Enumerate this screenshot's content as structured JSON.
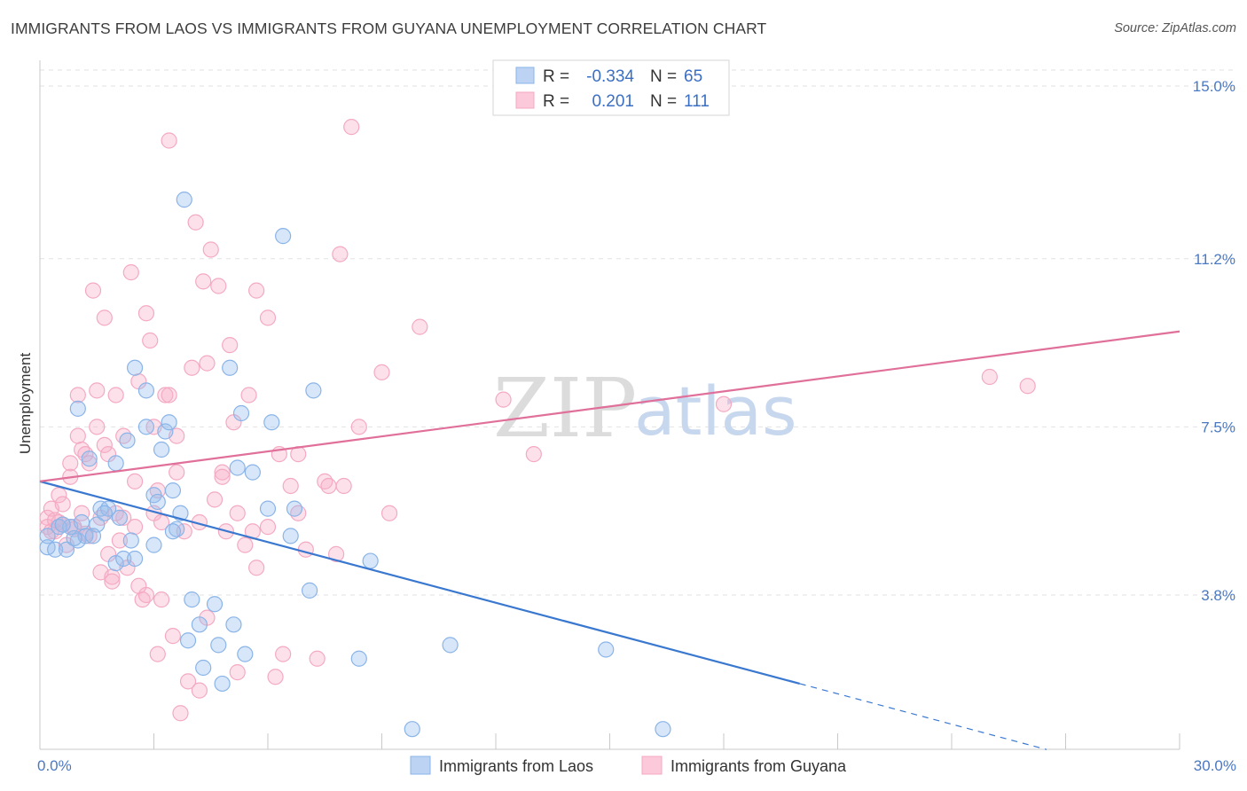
{
  "title": "IMMIGRANTS FROM LAOS VS IMMIGRANTS FROM GUYANA UNEMPLOYMENT CORRELATION CHART",
  "source": "Source: ZipAtlas.com",
  "watermark": {
    "zip": "ZIP",
    "atlas": "atlas"
  },
  "chart_data": {
    "type": "scatter",
    "title": "IMMIGRANTS FROM LAOS VS IMMIGRANTS FROM GUYANA UNEMPLOYMENT CORRELATION CHART",
    "xlabel": "",
    "ylabel": "Unemployment",
    "xlim": [
      0,
      30
    ],
    "ylim": [
      0.5,
      15.5
    ],
    "x_tick_labels": [
      {
        "value": 0,
        "label": "0.0%"
      },
      {
        "value": 30,
        "label": "30.0%"
      }
    ],
    "y_ticks": [
      {
        "value": 3.8,
        "label": "3.8%"
      },
      {
        "value": 7.5,
        "label": "7.5%"
      },
      {
        "value": 11.2,
        "label": "11.2%"
      },
      {
        "value": 15.0,
        "label": "15.0%"
      }
    ],
    "legend_stats": [
      {
        "r_label": "R =",
        "r_value": "-0.334",
        "n_label": "N =",
        "n_value": "65"
      },
      {
        "r_label": "R =",
        "r_value": "0.201",
        "n_label": "N =",
        "n_value": "111"
      }
    ],
    "series": [
      {
        "name": "Immigrants from Laos",
        "color": "#8ab4e8",
        "line_color": "#3a78d0",
        "trend": {
          "x0": 0,
          "y0": 6.3,
          "x1": 20.0,
          "y1": 1.85,
          "dash_to_x": 26.5,
          "dash_to_y": 0.4
        },
        "points": [
          [
            0.2,
            5.1
          ],
          [
            0.2,
            4.85
          ],
          [
            0.4,
            4.8
          ],
          [
            0.5,
            5.3
          ],
          [
            0.7,
            4.8
          ],
          [
            0.8,
            5.3
          ],
          [
            1.0,
            5.0
          ],
          [
            1.0,
            7.9
          ],
          [
            1.2,
            5.1
          ],
          [
            1.3,
            6.8
          ],
          [
            1.5,
            5.35
          ],
          [
            1.6,
            5.7
          ],
          [
            1.8,
            5.7
          ],
          [
            2.0,
            4.5
          ],
          [
            2.0,
            6.7
          ],
          [
            2.2,
            4.6
          ],
          [
            2.3,
            7.2
          ],
          [
            2.5,
            8.8
          ],
          [
            2.5,
            4.6
          ],
          [
            2.8,
            8.3
          ],
          [
            2.8,
            7.5
          ],
          [
            3.0,
            4.9
          ],
          [
            3.0,
            6.0
          ],
          [
            3.1,
            5.85
          ],
          [
            3.2,
            7.0
          ],
          [
            3.3,
            7.4
          ],
          [
            3.4,
            7.6
          ],
          [
            3.5,
            6.1
          ],
          [
            3.6,
            5.25
          ],
          [
            3.7,
            5.6
          ],
          [
            3.8,
            12.5
          ],
          [
            3.9,
            2.8
          ],
          [
            4.0,
            3.7
          ],
          [
            4.2,
            3.15
          ],
          [
            4.3,
            2.2
          ],
          [
            4.6,
            3.6
          ],
          [
            4.7,
            2.7
          ],
          [
            4.8,
            1.85
          ],
          [
            5.0,
            8.8
          ],
          [
            5.1,
            3.15
          ],
          [
            5.2,
            6.6
          ],
          [
            5.3,
            7.8
          ],
          [
            5.4,
            2.5
          ],
          [
            5.6,
            6.5
          ],
          [
            6.0,
            5.7
          ],
          [
            6.1,
            7.6
          ],
          [
            6.4,
            11.7
          ],
          [
            6.6,
            5.1
          ],
          [
            6.7,
            5.7
          ],
          [
            7.1,
            3.9
          ],
          [
            7.2,
            8.3
          ],
          [
            8.4,
            2.4
          ],
          [
            8.7,
            4.55
          ],
          [
            9.8,
            0.85
          ],
          [
            10.8,
            2.7
          ],
          [
            14.9,
            2.6
          ],
          [
            16.4,
            0.85
          ],
          [
            0.6,
            5.35
          ],
          [
            0.9,
            5.05
          ],
          [
            1.1,
            5.4
          ],
          [
            1.4,
            5.1
          ],
          [
            1.7,
            5.6
          ],
          [
            2.1,
            5.5
          ],
          [
            2.4,
            5.0
          ],
          [
            3.5,
            5.2
          ]
        ]
      },
      {
        "name": "Immigrants from Guyana",
        "color": "#f4a9c2",
        "line_color": "#e0709a",
        "trend": {
          "x0": 0,
          "y0": 6.3,
          "x1": 30.0,
          "y1": 9.6
        },
        "points": [
          [
            0.2,
            5.5
          ],
          [
            0.2,
            5.3
          ],
          [
            0.3,
            5.7
          ],
          [
            0.4,
            5.2
          ],
          [
            0.5,
            5.4
          ],
          [
            0.5,
            6.0
          ],
          [
            0.6,
            5.8
          ],
          [
            0.7,
            4.9
          ],
          [
            0.8,
            6.4
          ],
          [
            0.8,
            6.7
          ],
          [
            0.9,
            5.3
          ],
          [
            1.0,
            7.3
          ],
          [
            1.0,
            8.2
          ],
          [
            1.1,
            5.6
          ],
          [
            1.1,
            7.0
          ],
          [
            1.2,
            6.9
          ],
          [
            1.3,
            5.1
          ],
          [
            1.3,
            6.7
          ],
          [
            1.4,
            10.5
          ],
          [
            1.5,
            7.5
          ],
          [
            1.5,
            8.3
          ],
          [
            1.6,
            5.5
          ],
          [
            1.6,
            4.3
          ],
          [
            1.7,
            7.1
          ],
          [
            1.7,
            9.9
          ],
          [
            1.8,
            4.7
          ],
          [
            1.8,
            6.9
          ],
          [
            1.9,
            4.2
          ],
          [
            1.9,
            4.1
          ],
          [
            2.0,
            8.2
          ],
          [
            2.1,
            5.0
          ],
          [
            2.2,
            7.3
          ],
          [
            2.2,
            5.5
          ],
          [
            2.3,
            4.4
          ],
          [
            2.4,
            10.9
          ],
          [
            2.5,
            5.3
          ],
          [
            2.5,
            6.3
          ],
          [
            2.6,
            8.5
          ],
          [
            2.7,
            3.7
          ],
          [
            2.8,
            3.8
          ],
          [
            2.8,
            10.0
          ],
          [
            2.9,
            9.4
          ],
          [
            3.0,
            7.5
          ],
          [
            3.1,
            2.5
          ],
          [
            3.1,
            6.1
          ],
          [
            3.2,
            3.7
          ],
          [
            3.3,
            8.2
          ],
          [
            3.4,
            13.8
          ],
          [
            3.4,
            8.2
          ],
          [
            3.5,
            2.9
          ],
          [
            3.6,
            7.3
          ],
          [
            3.7,
            1.2
          ],
          [
            3.8,
            5.2
          ],
          [
            3.9,
            1.9
          ],
          [
            4.0,
            8.8
          ],
          [
            4.1,
            12.0
          ],
          [
            4.2,
            1.7
          ],
          [
            4.3,
            10.7
          ],
          [
            4.4,
            3.3
          ],
          [
            4.4,
            8.9
          ],
          [
            4.5,
            11.4
          ],
          [
            4.6,
            5.9
          ],
          [
            4.7,
            10.6
          ],
          [
            4.8,
            6.5
          ],
          [
            4.9,
            5.2
          ],
          [
            5.0,
            9.3
          ],
          [
            5.1,
            7.6
          ],
          [
            5.2,
            5.6
          ],
          [
            5.2,
            2.1
          ],
          [
            5.5,
            8.2
          ],
          [
            5.6,
            5.2
          ],
          [
            5.7,
            10.5
          ],
          [
            5.7,
            4.4
          ],
          [
            6.0,
            9.9
          ],
          [
            6.2,
            2.0
          ],
          [
            6.3,
            6.9
          ],
          [
            6.4,
            2.5
          ],
          [
            6.6,
            6.2
          ],
          [
            6.8,
            6.9
          ],
          [
            7.3,
            2.4
          ],
          [
            7.5,
            6.3
          ],
          [
            7.6,
            6.2
          ],
          [
            7.8,
            4.7
          ],
          [
            7.9,
            11.3
          ],
          [
            8.0,
            6.2
          ],
          [
            8.2,
            14.1
          ],
          [
            8.4,
            7.5
          ],
          [
            9.0,
            8.7
          ],
          [
            9.2,
            5.6
          ],
          [
            10.0,
            9.7
          ],
          [
            12.2,
            8.1
          ],
          [
            13.0,
            6.9
          ],
          [
            18.0,
            8.0
          ],
          [
            25.0,
            8.6
          ],
          [
            26.0,
            8.4
          ],
          [
            0.3,
            5.2
          ],
          [
            0.4,
            5.45
          ],
          [
            0.6,
            5.35
          ],
          [
            0.9,
            5.25
          ],
          [
            1.2,
            5.15
          ],
          [
            2.0,
            5.6
          ],
          [
            2.6,
            4.0
          ],
          [
            3.0,
            5.6
          ],
          [
            3.2,
            5.4
          ],
          [
            3.6,
            6.5
          ],
          [
            4.2,
            5.4
          ],
          [
            4.8,
            6.4
          ],
          [
            5.4,
            4.9
          ],
          [
            6.0,
            5.3
          ],
          [
            6.8,
            5.6
          ],
          [
            7.0,
            4.8
          ]
        ]
      }
    ]
  }
}
